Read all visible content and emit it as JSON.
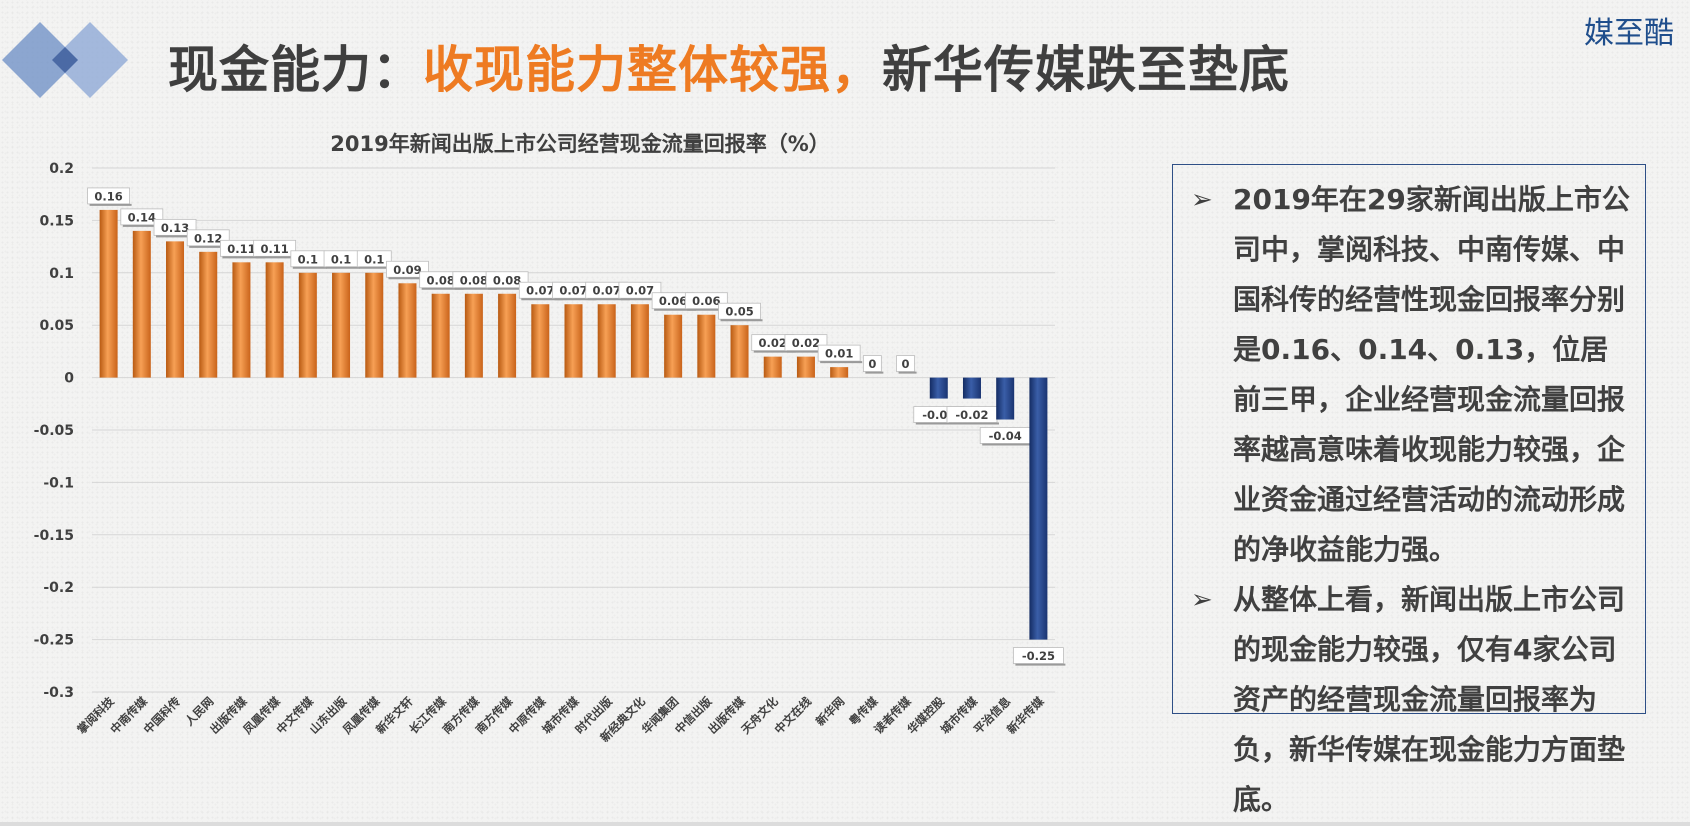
{
  "header": {
    "title_prefix": "现金能力：",
    "title_highlight": "收现能力整体较强，",
    "title_suffix": "新华传媒跌至垫底",
    "brand": "媒至酷"
  },
  "colors": {
    "positive_bar": "#ee7b22",
    "negative_bar": "#1f3f85",
    "highlight_text": "#ee7b22",
    "brand": "#1f4e8c"
  },
  "chart_data": {
    "type": "bar",
    "title": "2019年新闻出版上市公司经营现金流量回报率（%）",
    "categories": [
      "掌阅科技",
      "中南传媒",
      "中国科传",
      "人民网",
      "出版传媒",
      "凤凰传媒",
      "中文传媒",
      "山东出版",
      "凤凰传媒",
      "新华文轩",
      "长江传媒",
      "南方传媒",
      "南方传媒",
      "中原传媒",
      "城市传媒",
      "时代出版",
      "新经典文化",
      "华闻集团",
      "中信出版",
      "出版传媒",
      "天舟文化",
      "中文在线",
      "新华网",
      "粤传媒",
      "读者传媒",
      "华媒控股",
      "城市传媒",
      "平治信息",
      "新华传媒"
    ],
    "labels": [
      "0.16",
      "0.14",
      "0.13",
      "0.12",
      "0.11",
      "0.11",
      "0.1",
      "0.1",
      "0.1",
      "0.09",
      "0.08",
      "0.08",
      "0.08",
      "0.07",
      "0.07",
      "0.07",
      "0.07",
      "0.06",
      "0.06",
      "0.05",
      "0.02",
      "0.02",
      "0.01",
      "0",
      "0",
      "-0.02",
      "-0.02",
      "-0.04",
      "-0.25"
    ],
    "values": [
      0.16,
      0.14,
      0.13,
      0.12,
      0.11,
      0.11,
      0.1,
      0.1,
      0.1,
      0.09,
      0.08,
      0.08,
      0.08,
      0.07,
      0.07,
      0.07,
      0.07,
      0.06,
      0.06,
      0.05,
      0.02,
      0.02,
      0.01,
      0,
      0,
      -0.02,
      -0.02,
      -0.04,
      -0.25
    ],
    "ylim": [
      -0.3,
      0.2
    ],
    "yticks": [
      "0.2",
      "0.15",
      "0.1",
      "0.05",
      "0",
      "-0.05",
      "-0.1",
      "-0.15",
      "-0.2",
      "-0.25",
      "-0.3"
    ],
    "grid": true,
    "legend": "none"
  },
  "textbox": {
    "bullets": [
      "2019年在29家新闻出版上市公司中，掌阅科技、中南传媒、中国科传的经营性现金回报率分别是0.16、0.14、0.13，位居前三甲，企业经营现金流量回报率越高意味着收现能力较强，企业资金通过经营活动的流动形成的净收益能力强。",
      "从整体上看，新闻出版上市公司的现金能力较强，仅有4家公司资产的经营现金流量回报率为负，新华传媒在现金能力方面垫底。"
    ],
    "arrow_glyph": "➢"
  }
}
